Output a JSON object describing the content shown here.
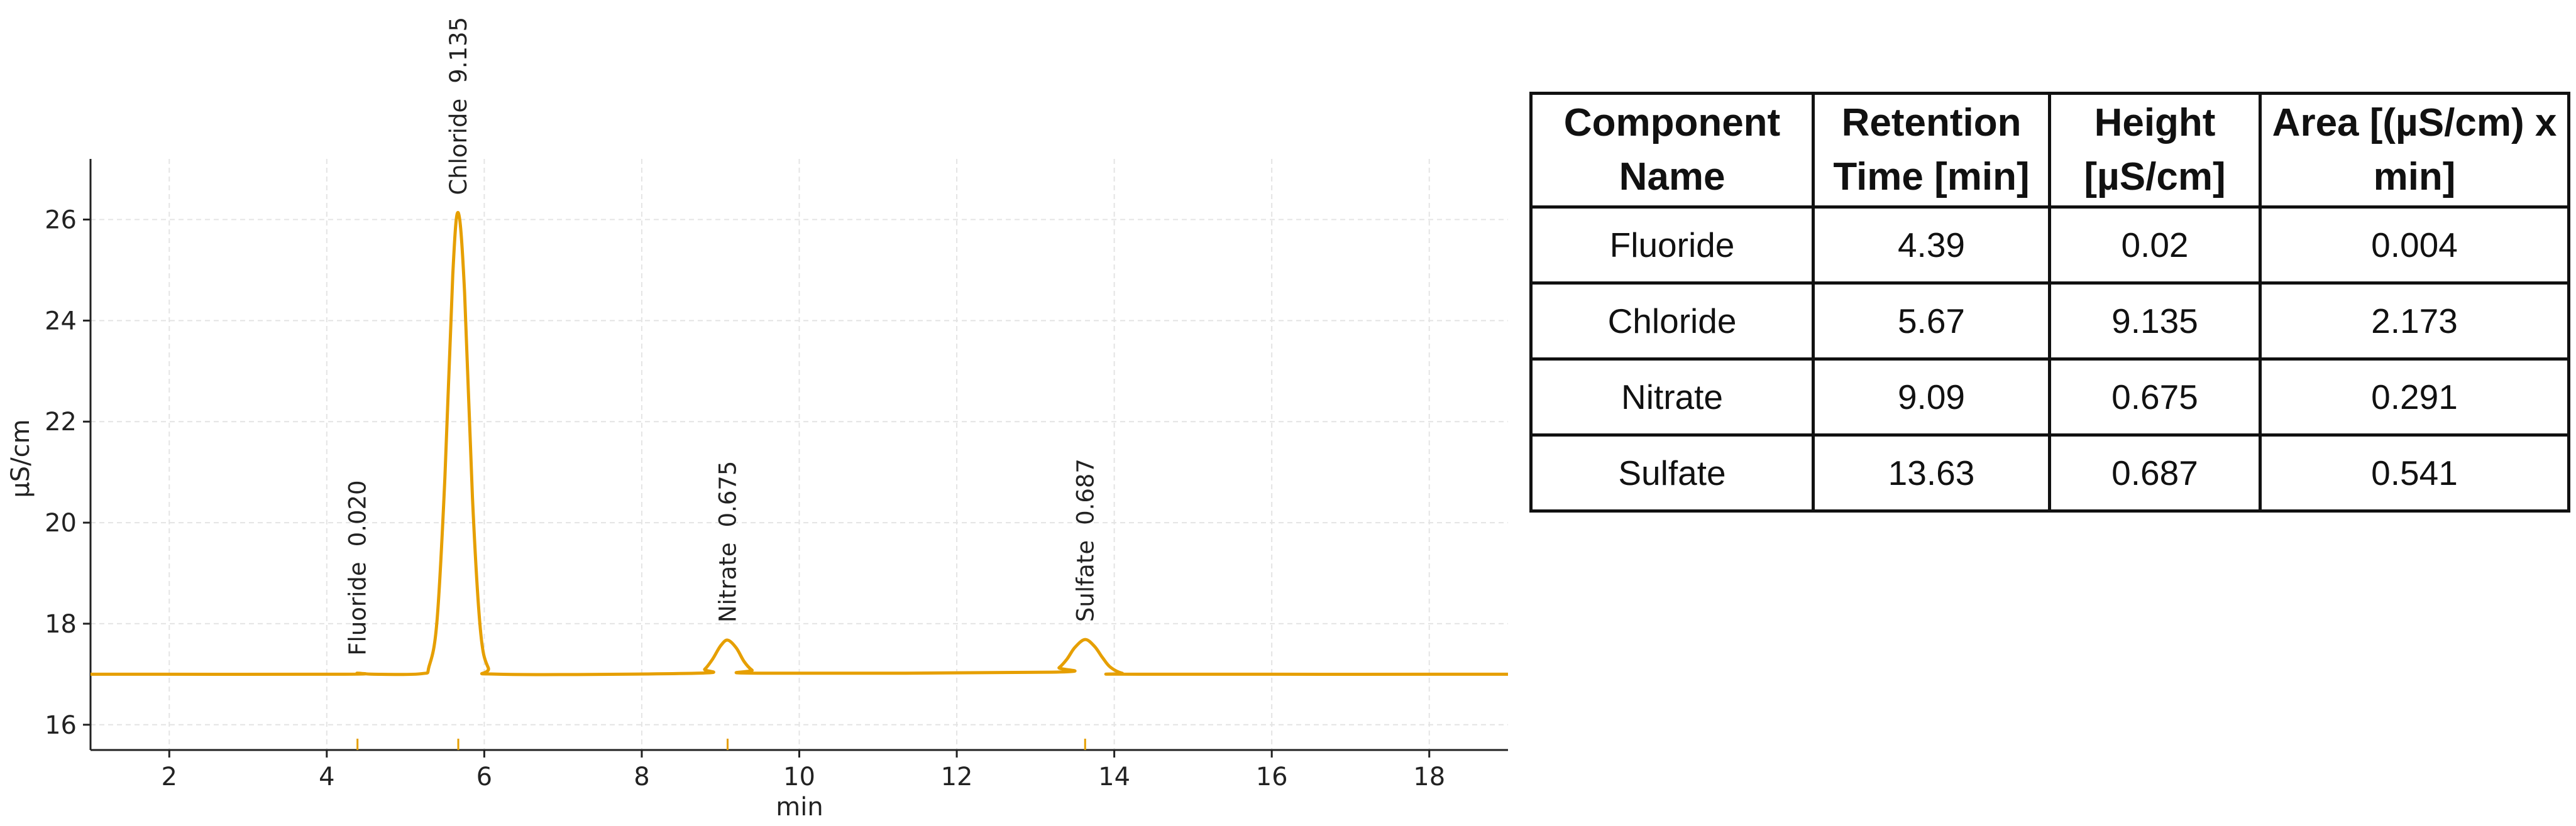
{
  "chart_data": {
    "type": "line",
    "x_label": "min",
    "y_label": "µS/cm",
    "color": "#e69f00",
    "grid": true,
    "x": [
      1,
      4.2,
      4.39,
      4.6,
      5.2,
      5.3,
      5.4,
      5.5,
      5.6,
      5.67,
      5.75,
      5.85,
      5.95,
      6.05,
      6.2,
      8.7,
      8.8,
      8.9,
      9.0,
      9.09,
      9.2,
      9.3,
      9.4,
      9.5,
      13.2,
      13.3,
      13.4,
      13.5,
      13.63,
      13.75,
      13.85,
      13.95,
      14.1,
      14.3,
      19
    ],
    "values": [
      17,
      17,
      17.02,
      17,
      17.01,
      17.16,
      18.06,
      20.89,
      24.9,
      26.135,
      24.56,
      20.5,
      17.9,
      17.13,
      17,
      17.02,
      17.1,
      17.3,
      17.56,
      17.675,
      17.52,
      17.25,
      17.08,
      17.02,
      17.04,
      17.13,
      17.3,
      17.53,
      17.687,
      17.55,
      17.33,
      17.14,
      17.02,
      17,
      17
    ],
    "xlim": [
      1,
      19
    ],
    "xticks": [
      2,
      4,
      6,
      8,
      10,
      12,
      14,
      16,
      18
    ],
    "ylim": [
      15.5,
      27.2
    ],
    "yticks": [
      16,
      18,
      20,
      22,
      24,
      26
    ],
    "annotations": [
      {
        "name": "Fluoride",
        "time": 4.39,
        "height": 0.02,
        "height_label": "0.020"
      },
      {
        "name": "Chloride",
        "time": 5.67,
        "height": 9.135,
        "height_label": "9.135"
      },
      {
        "name": "Nitrate",
        "time": 9.09,
        "height": 0.675,
        "height_label": "0.675"
      },
      {
        "name": "Sulfate",
        "time": 13.63,
        "height": 0.687,
        "height_label": "0.687"
      }
    ]
  },
  "table": {
    "header": [
      "Component Name",
      "Retention Time [min]",
      "Height [µS/cm]",
      "Area [(µS/cm) x min]"
    ],
    "rows": [
      [
        "Fluoride",
        "4.39",
        "0.02",
        "0.004"
      ],
      [
        "Chloride",
        "5.67",
        "9.135",
        "2.173"
      ],
      [
        "Nitrate",
        "9.09",
        "0.675",
        "0.291"
      ],
      [
        "Sulfate",
        "13.63",
        "0.687",
        "0.541"
      ]
    ]
  }
}
